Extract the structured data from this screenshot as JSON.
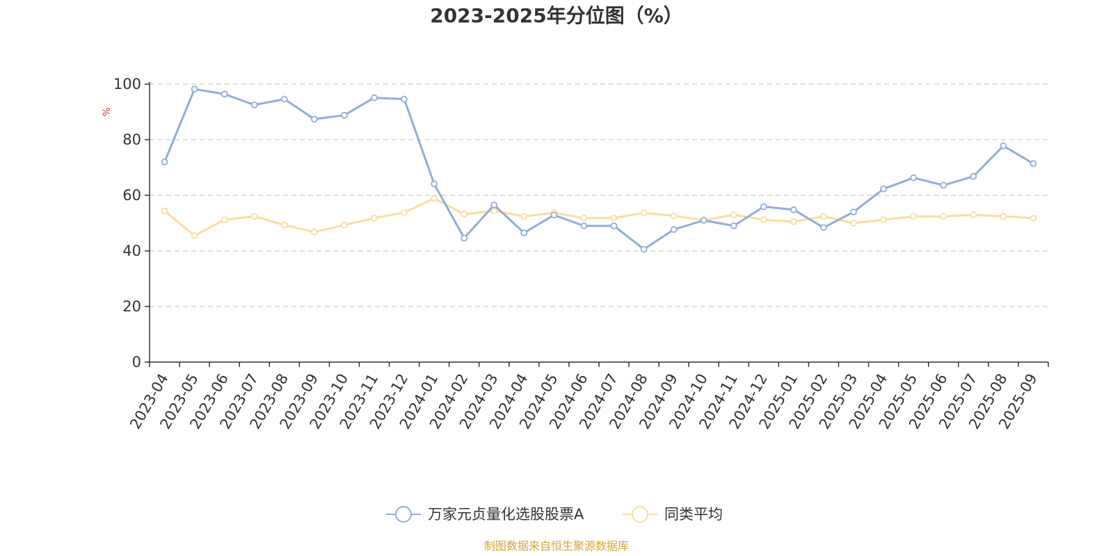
{
  "chart_data": {
    "type": "line",
    "title": "2023-2025年分位图（%）",
    "ylabel": "%",
    "xlabel": "",
    "ylim": [
      0,
      100
    ],
    "yticks": [
      0,
      20,
      40,
      60,
      80,
      100
    ],
    "grid": true,
    "legend_position": "bottom",
    "categories": [
      "2023-04",
      "2023-05",
      "2023-06",
      "2023-07",
      "2023-08",
      "2023-09",
      "2023-10",
      "2023-11",
      "2023-12",
      "2024-01",
      "2024-02",
      "2024-03",
      "2024-04",
      "2024-05",
      "2024-06",
      "2024-07",
      "2024-08",
      "2024-09",
      "2024-10",
      "2024-11",
      "2024-12",
      "2025-01",
      "2025-02",
      "2025-03",
      "2025-04",
      "2025-05",
      "2025-06",
      "2025-07",
      "2025-08",
      "2025-09"
    ],
    "series": [
      {
        "name": "万家元贞量化选股股票A",
        "color": "#8eaedb",
        "values": [
          72.0,
          98.2,
          96.4,
          92.5,
          94.6,
          87.4,
          88.8,
          95.1,
          94.6,
          64.1,
          44.6,
          56.5,
          46.5,
          52.9,
          49.0,
          49.0,
          40.6,
          47.7,
          51.0,
          49.0,
          55.9,
          54.8,
          48.4,
          54.0,
          62.3,
          66.3,
          63.6,
          66.8,
          77.8,
          71.4
        ]
      },
      {
        "name": "同类平均",
        "color": "#fddc9c",
        "values": [
          54.4,
          45.5,
          51.2,
          52.4,
          49.3,
          46.8,
          49.3,
          51.8,
          53.8,
          58.9,
          53.2,
          54.4,
          52.4,
          53.7,
          51.8,
          51.8,
          53.7,
          52.6,
          51.0,
          53.0,
          51.2,
          50.5,
          52.4,
          50.0,
          51.2,
          52.4,
          52.4,
          53.0,
          52.4,
          51.8
        ]
      }
    ]
  },
  "source_text": "制图数据来自恒生聚源数据库",
  "colors": {
    "axis": "#333333",
    "grid": "#cccccc",
    "unit": "#e52b2b",
    "source": "#d4a43a"
  }
}
